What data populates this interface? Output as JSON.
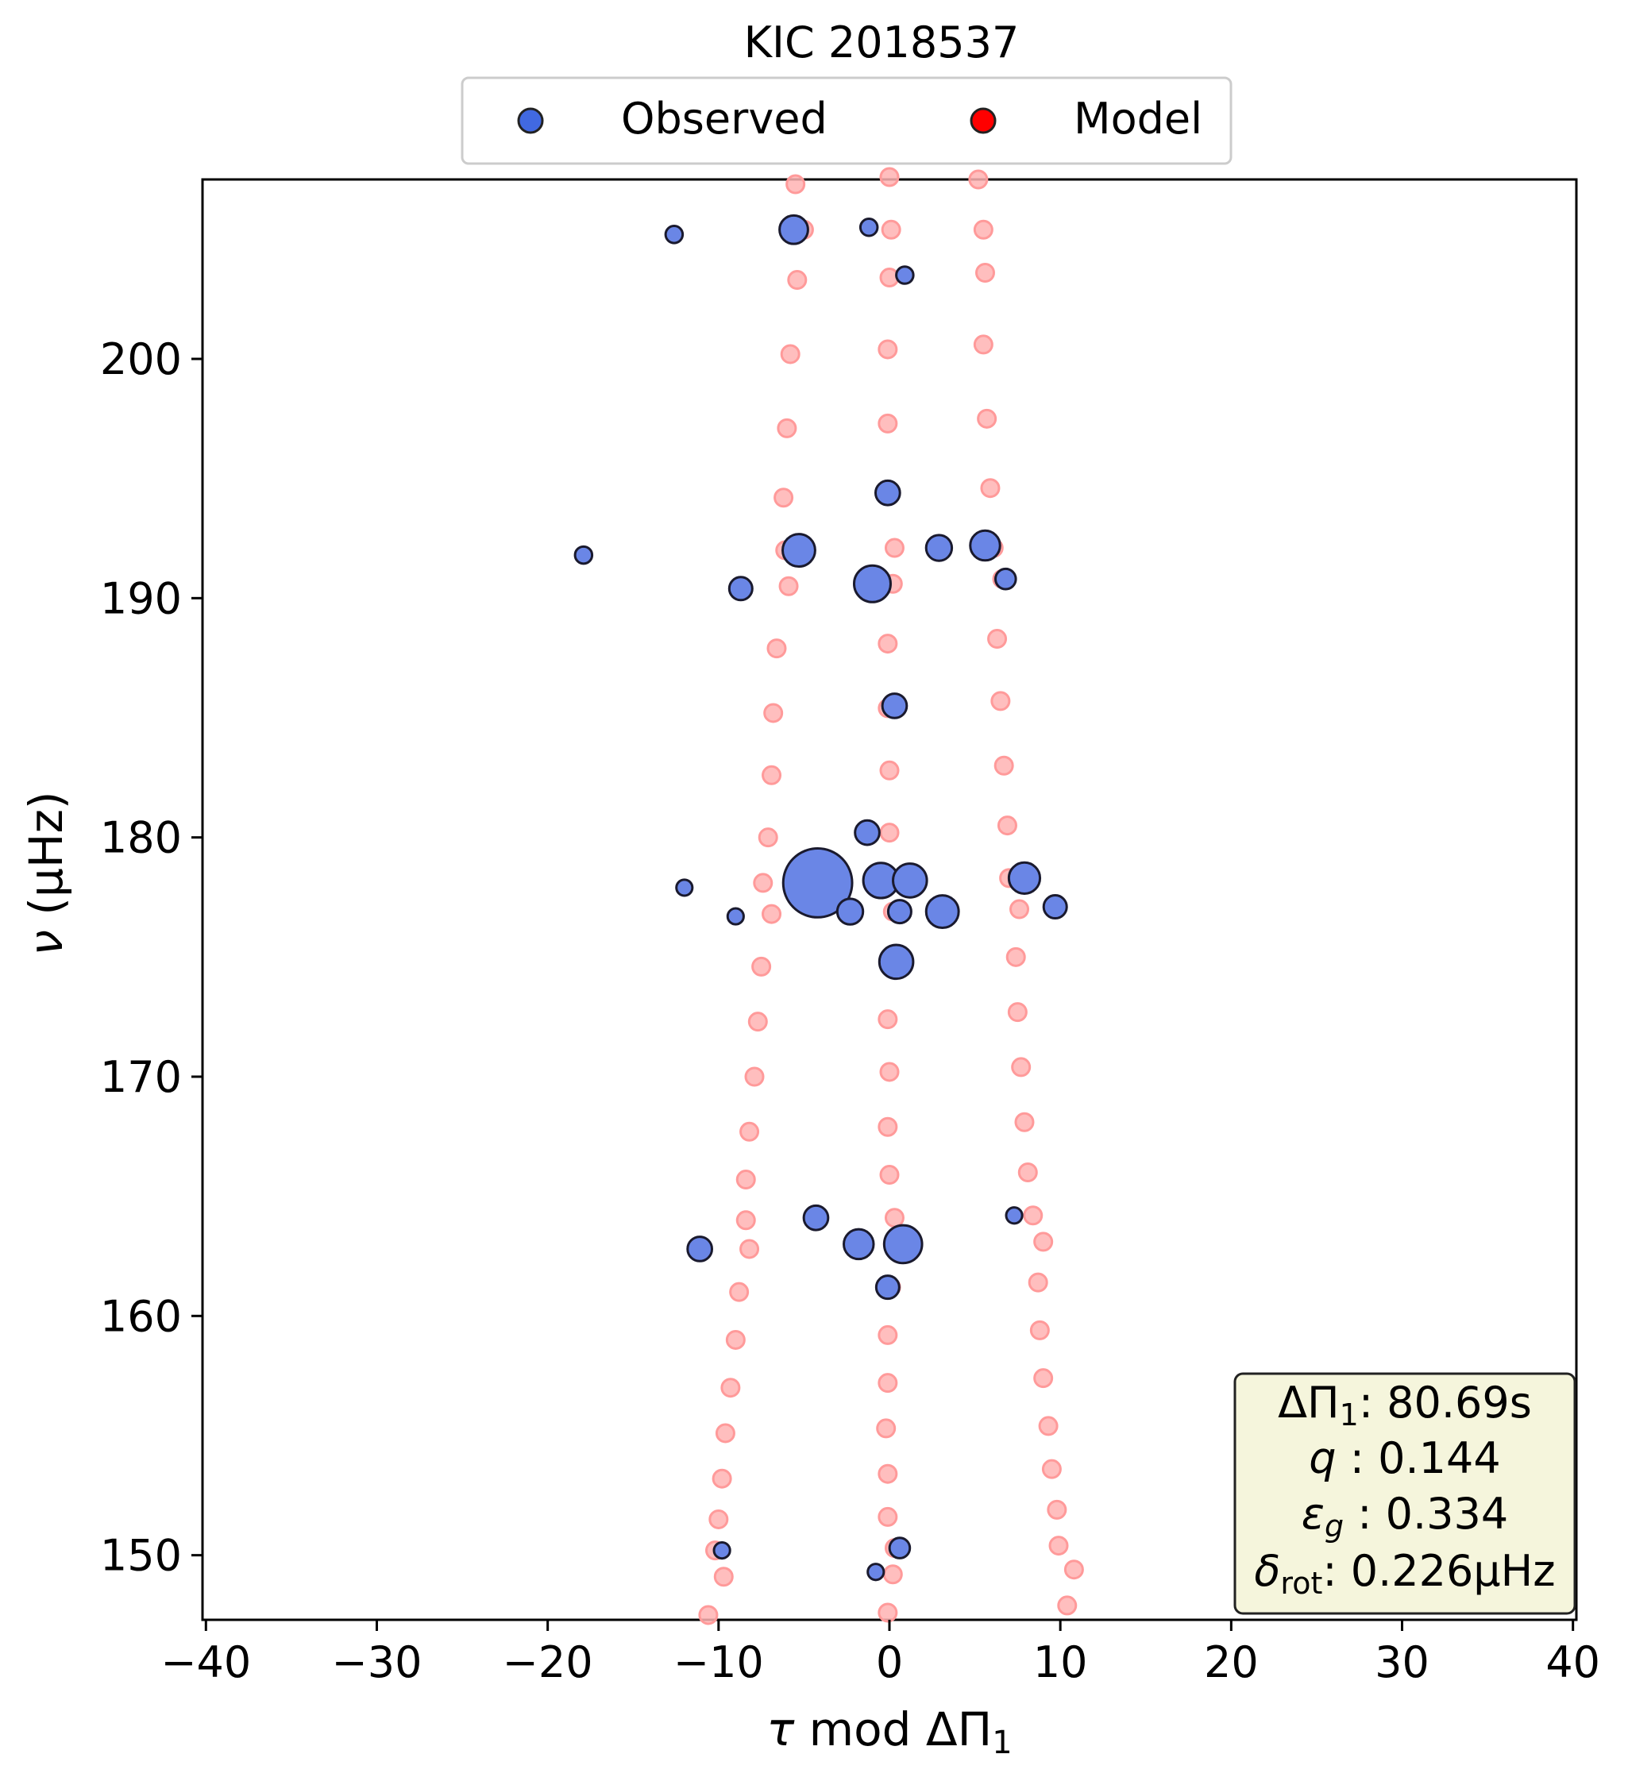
{
  "chart_data": {
    "type": "scatter",
    "title": "KIC 2018537",
    "xlabel_html": "τ mod ΔΠ₁",
    "ylabel_html": "ν (μHz)",
    "xlim": [
      -40.2,
      40.2
    ],
    "ylim": [
      147.3,
      207.5
    ],
    "xticks": [
      -40,
      -30,
      -20,
      -10,
      0,
      10,
      20,
      30,
      40
    ],
    "xtick_labels": [
      "−40",
      "−30",
      "−20",
      "−10",
      "0",
      "10",
      "20",
      "30",
      "40"
    ],
    "yticks": [
      150,
      160,
      170,
      180,
      190,
      200
    ],
    "ytick_labels": [
      "150",
      "160",
      "170",
      "180",
      "190",
      "200"
    ],
    "grid": false,
    "legend": {
      "placement": "above-top-center",
      "entries": [
        {
          "label": "Observed",
          "color": "#4169e1"
        },
        {
          "label": "Model",
          "color": "#ff0000"
        }
      ]
    },
    "info_box": {
      "lines": [
        {
          "label": "ΔΠ₁:",
          "value": "80.69s"
        },
        {
          "label": "q :",
          "value": "0.144"
        },
        {
          "label": "ε_g :",
          "value": "0.334"
        },
        {
          "label": "δ_rot:",
          "value": "0.226μHz"
        }
      ],
      "placement": "bottom-right"
    },
    "series": [
      {
        "name": "Model",
        "color": "#ff0000",
        "points": [
          [
            5.2,
            207.5
          ],
          [
            5.5,
            205.4
          ],
          [
            5.6,
            203.6
          ],
          [
            5.5,
            200.6
          ],
          [
            5.7,
            197.5
          ],
          [
            5.9,
            194.6
          ],
          [
            6.1,
            192.1
          ],
          [
            6.6,
            190.8
          ],
          [
            6.3,
            188.3
          ],
          [
            6.5,
            185.7
          ],
          [
            6.7,
            183.0
          ],
          [
            6.9,
            180.5
          ],
          [
            7.0,
            178.3
          ],
          [
            7.6,
            177.0
          ],
          [
            7.4,
            175.0
          ],
          [
            7.5,
            172.7
          ],
          [
            7.7,
            170.4
          ],
          [
            7.9,
            168.1
          ],
          [
            8.1,
            166.0
          ],
          [
            8.4,
            164.2
          ],
          [
            9.0,
            163.1
          ],
          [
            8.7,
            161.4
          ],
          [
            8.8,
            159.4
          ],
          [
            9.0,
            157.4
          ],
          [
            9.3,
            155.4
          ],
          [
            9.5,
            153.6
          ],
          [
            9.8,
            151.9
          ],
          [
            9.9,
            150.4
          ],
          [
            10.8,
            149.4
          ],
          [
            10.4,
            147.9
          ],
          [
            0.0,
            207.6
          ],
          [
            0.1,
            205.4
          ],
          [
            0.0,
            203.4
          ],
          [
            -0.1,
            200.4
          ],
          [
            -0.1,
            197.3
          ],
          [
            0.0,
            194.4
          ],
          [
            0.3,
            192.1
          ],
          [
            0.2,
            190.6
          ],
          [
            -0.1,
            188.1
          ],
          [
            -0.1,
            185.4
          ],
          [
            0.0,
            182.8
          ],
          [
            0.0,
            180.2
          ],
          [
            0.2,
            178.2
          ],
          [
            0.2,
            176.9
          ],
          [
            0.0,
            174.8
          ],
          [
            -0.1,
            172.4
          ],
          [
            0.0,
            170.2
          ],
          [
            -0.1,
            167.9
          ],
          [
            0.0,
            165.9
          ],
          [
            0.3,
            164.1
          ],
          [
            0.2,
            163.0
          ],
          [
            0.1,
            161.2
          ],
          [
            -0.1,
            159.2
          ],
          [
            -0.1,
            157.2
          ],
          [
            -0.2,
            155.3
          ],
          [
            -0.1,
            153.4
          ],
          [
            -0.1,
            151.6
          ],
          [
            0.3,
            150.3
          ],
          [
            0.2,
            149.2
          ],
          [
            -0.1,
            147.6
          ],
          [
            -5.5,
            207.3
          ],
          [
            -5.0,
            205.4
          ],
          [
            -5.4,
            203.3
          ],
          [
            -5.8,
            200.2
          ],
          [
            -6.0,
            197.1
          ],
          [
            -6.2,
            194.2
          ],
          [
            -6.1,
            192.0
          ],
          [
            -5.9,
            190.5
          ],
          [
            -6.6,
            187.9
          ],
          [
            -6.8,
            185.2
          ],
          [
            -6.9,
            182.6
          ],
          [
            -7.1,
            180.0
          ],
          [
            -7.4,
            178.1
          ],
          [
            -6.9,
            176.8
          ],
          [
            -7.5,
            174.6
          ],
          [
            -7.7,
            172.3
          ],
          [
            -7.9,
            170.0
          ],
          [
            -8.2,
            167.7
          ],
          [
            -8.4,
            165.7
          ],
          [
            -8.4,
            164.0
          ],
          [
            -8.2,
            162.8
          ],
          [
            -8.8,
            161.0
          ],
          [
            -9.0,
            159.0
          ],
          [
            -9.3,
            157.0
          ],
          [
            -9.6,
            155.1
          ],
          [
            -9.8,
            153.2
          ],
          [
            -10.0,
            151.5
          ],
          [
            -10.2,
            150.2
          ],
          [
            -9.7,
            149.1
          ],
          [
            -10.6,
            147.5
          ]
        ]
      },
      {
        "name": "Observed",
        "color": "#4169e1",
        "points": [
          {
            "x": -12.6,
            "y": 205.2,
            "s": 0.28
          },
          {
            "x": -5.6,
            "y": 205.4,
            "s": 0.7
          },
          {
            "x": -1.2,
            "y": 205.5,
            "s": 0.28
          },
          {
            "x": 0.9,
            "y": 203.5,
            "s": 0.28
          },
          {
            "x": -0.1,
            "y": 194.4,
            "s": 0.55
          },
          {
            "x": -17.9,
            "y": 191.8,
            "s": 0.28
          },
          {
            "x": -5.3,
            "y": 192.0,
            "s": 0.85
          },
          {
            "x": 2.9,
            "y": 192.1,
            "s": 0.6
          },
          {
            "x": 5.6,
            "y": 192.2,
            "s": 0.75
          },
          {
            "x": -8.7,
            "y": 190.4,
            "s": 0.5
          },
          {
            "x": -1.0,
            "y": 190.6,
            "s": 1.0
          },
          {
            "x": 6.8,
            "y": 190.8,
            "s": 0.4
          },
          {
            "x": 0.3,
            "y": 185.5,
            "s": 0.55
          },
          {
            "x": -1.3,
            "y": 180.2,
            "s": 0.55
          },
          {
            "x": -12.0,
            "y": 177.9,
            "s": 0.24
          },
          {
            "x": -4.2,
            "y": 178.1,
            "s": 2.2
          },
          {
            "x": -0.5,
            "y": 178.2,
            "s": 0.95
          },
          {
            "x": 1.2,
            "y": 178.2,
            "s": 0.9
          },
          {
            "x": 7.9,
            "y": 178.3,
            "s": 0.8
          },
          {
            "x": -9.0,
            "y": 176.7,
            "s": 0.24
          },
          {
            "x": -2.3,
            "y": 176.9,
            "s": 0.6
          },
          {
            "x": 0.6,
            "y": 176.9,
            "s": 0.5
          },
          {
            "x": 3.1,
            "y": 176.9,
            "s": 0.85
          },
          {
            "x": 9.7,
            "y": 177.1,
            "s": 0.5
          },
          {
            "x": 0.4,
            "y": 174.8,
            "s": 0.9
          },
          {
            "x": -4.3,
            "y": 164.1,
            "s": 0.55
          },
          {
            "x": 7.3,
            "y": 164.2,
            "s": 0.24
          },
          {
            "x": -11.1,
            "y": 162.8,
            "s": 0.55
          },
          {
            "x": -1.8,
            "y": 163.0,
            "s": 0.75
          },
          {
            "x": 0.8,
            "y": 163.0,
            "s": 1.05
          },
          {
            "x": -0.1,
            "y": 161.2,
            "s": 0.5
          },
          {
            "x": -9.8,
            "y": 150.2,
            "s": 0.24
          },
          {
            "x": 0.6,
            "y": 150.3,
            "s": 0.4
          },
          {
            "x": -0.8,
            "y": 149.3,
            "s": 0.24
          }
        ]
      }
    ]
  },
  "rendered": {
    "title": "KIC 2018537",
    "legend_observed": "Observed",
    "legend_model": "Model",
    "xlabel_tau": "τ",
    "xlabel_mod": " mod ",
    "xlabel_dpi": "ΔΠ",
    "xlabel_sub": "1",
    "ylabel_nu": "ν",
    "ylabel_unit": " (μHz)",
    "info_dpi": "ΔΠ",
    "info_dpi_sub": "1",
    "info_dpi_val": ": 80.69s",
    "info_q": "q",
    "info_q_val": " :  0.144",
    "info_eps": "ε",
    "info_eps_sub": "g",
    "info_eps_val": " : 0.334",
    "info_delta": "δ",
    "info_delta_sub": "rot",
    "info_delta_val": ": 0.226μHz"
  }
}
